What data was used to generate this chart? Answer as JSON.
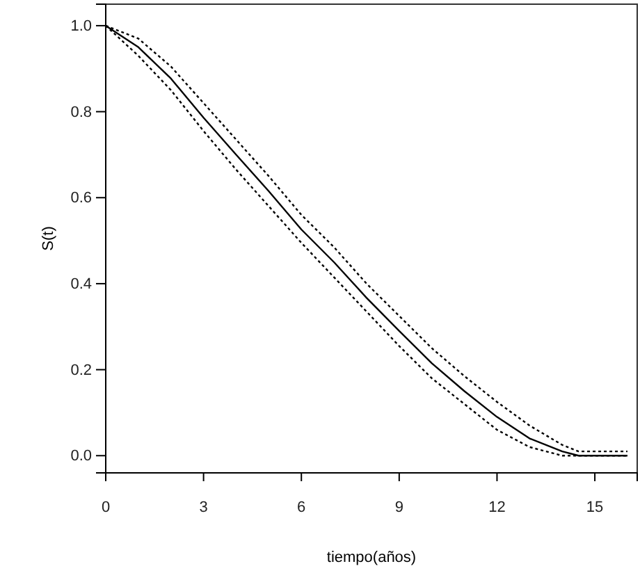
{
  "chart_data": {
    "type": "line",
    "xlabel": "tiempo(años)",
    "ylabel": "S(t)",
    "x": [
      0,
      1,
      2,
      3,
      4,
      5,
      6,
      7,
      8,
      9,
      10,
      11,
      12,
      13,
      14,
      14.5,
      16
    ],
    "series": [
      {
        "color": "#000000",
        "line_style": "solid",
        "values": [
          1,
          0.95,
          0.877,
          0.786,
          0.7,
          0.615,
          0.526,
          0.45,
          0.367,
          0.29,
          0.215,
          0.15,
          0.09,
          0.04,
          0.01,
          0.0,
          0.0
        ]
      },
      {
        "color": "#000000",
        "line_style": "dotted",
        "values": [
          1,
          0.97,
          0.905,
          0.82,
          0.735,
          0.65,
          0.56,
          0.485,
          0.4,
          0.325,
          0.25,
          0.185,
          0.125,
          0.07,
          0.025,
          0.01,
          0.01
        ]
      },
      {
        "color": "#000000",
        "line_style": "dotted",
        "values": [
          1,
          0.93,
          0.85,
          0.755,
          0.665,
          0.58,
          0.495,
          0.415,
          0.335,
          0.255,
          0.18,
          0.12,
          0.06,
          0.02,
          0.0,
          0.0,
          0.0
        ]
      }
    ],
    "xlim": [
      0,
      16.3
    ],
    "ylim": [
      -0.04,
      1.05
    ],
    "xticks": [
      0,
      3,
      6,
      9,
      12,
      15
    ],
    "yticks": [
      {
        "value": 0,
        "label": "0.0"
      },
      {
        "value": 0.2,
        "label": "0.2"
      },
      {
        "value": 0.4,
        "label": "0.4"
      },
      {
        "value": 0.6,
        "label": "0.6"
      },
      {
        "value": 0.8,
        "label": "0.8"
      },
      {
        "value": 1,
        "label": "1.0"
      }
    ],
    "grid": false,
    "marker": "none"
  }
}
